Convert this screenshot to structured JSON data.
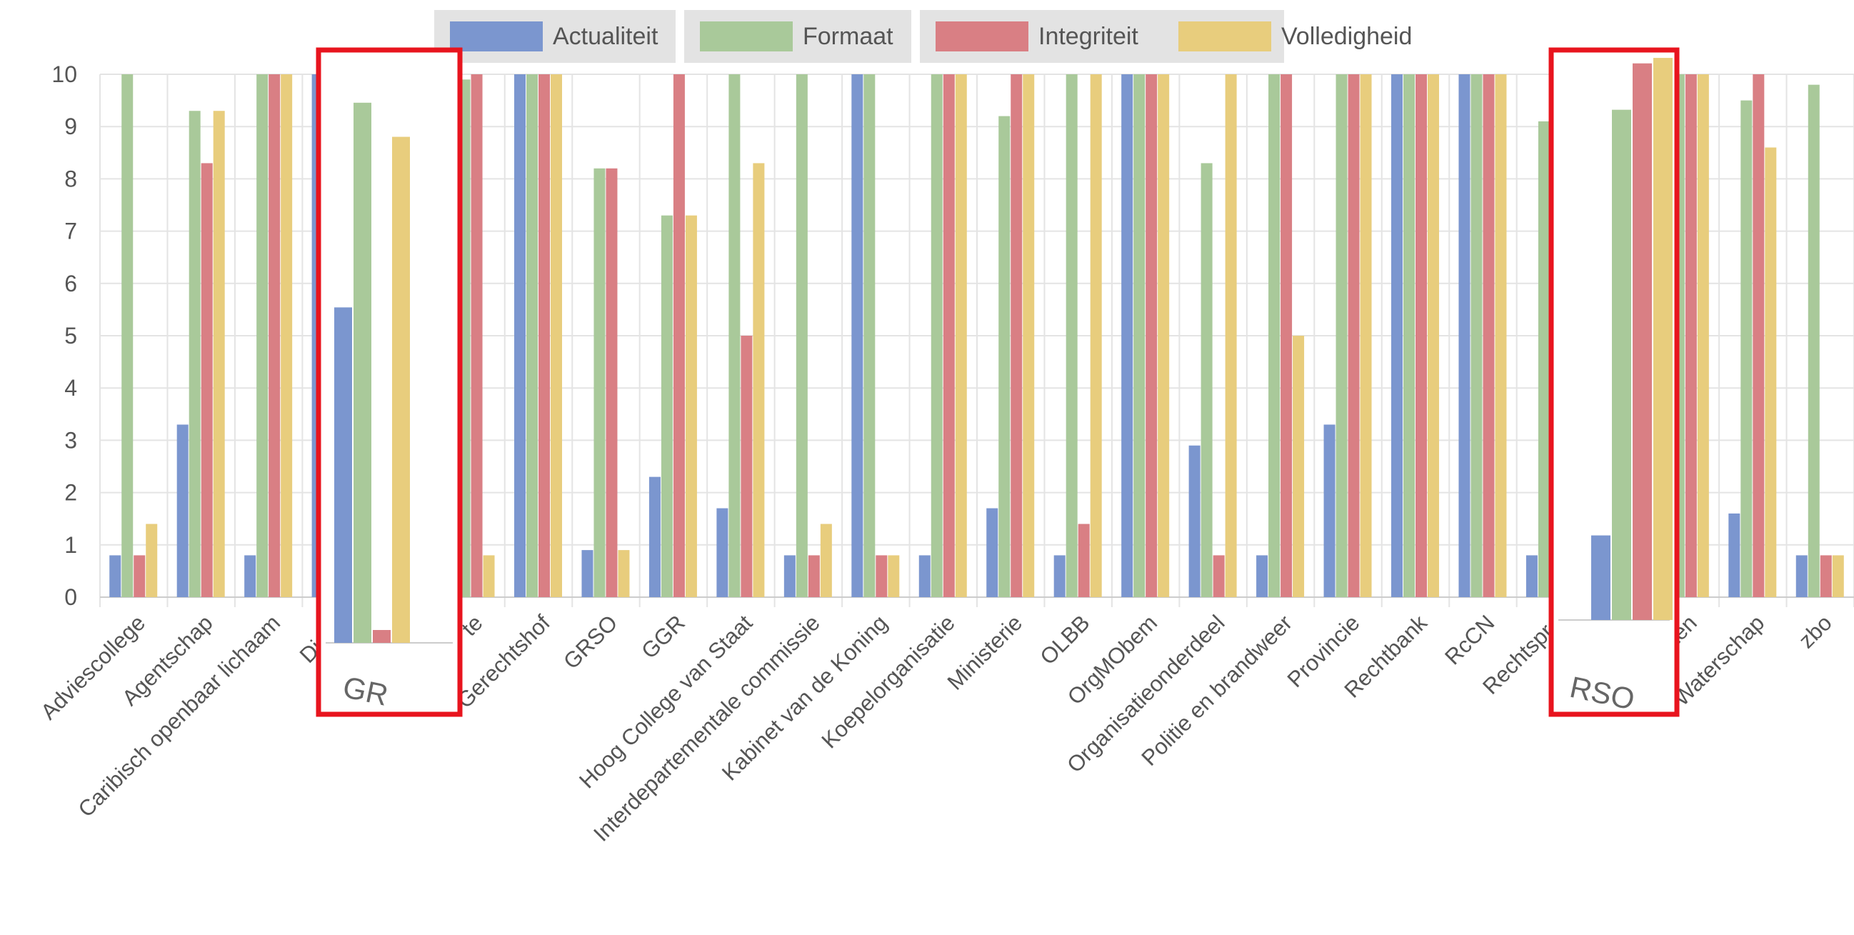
{
  "chart_data": {
    "type": "bar",
    "title": "",
    "xlabel": "",
    "ylabel": "",
    "ylim": [
      0,
      10
    ],
    "yticks": [
      "0",
      "1",
      "2",
      "3",
      "4",
      "5",
      "6",
      "7",
      "8",
      "9",
      "10"
    ],
    "legend_position": "top",
    "grid": true,
    "categories": [
      "Adviescollege",
      "Agentschap",
      "Caribisch openbaar lichaam",
      "Dienst",
      "GR",
      "Gemeente",
      "Gerechtshof",
      "GRSO",
      "GGR",
      "Hoog College van Staat",
      "Interdepartementale commissie",
      "Kabinet van de Koning",
      "Koepelorganisatie",
      "Ministerie",
      "OLBB",
      "OrgMObem",
      "Organisatieonderdeel",
      "Politie en brandweer",
      "Provincie",
      "Rechtbank",
      "RcCN",
      "Rechtspraak",
      "RSO",
      "Staten-Generaal",
      "Waterschap",
      "zbo"
    ],
    "tick_labels": [
      "Adviescollege",
      "Agentschap",
      "Caribisch openbaar lichaam",
      "Diens",
      "",
      "te",
      "Gerechtshof",
      "GRSO",
      "GGR",
      "Hoog College van Staat",
      "Interdepartementale commissie",
      "Kabinet van de Koning",
      "Koepelorganisatie",
      "Ministerie",
      "OLBB",
      "OrgMObem",
      "Organisatieonderdeel",
      "Politie en brandweer",
      "Provincie",
      "Rechtbank",
      "RcCN",
      "Rechtspra",
      "",
      "Staten",
      "Waterschap",
      "zbo"
    ],
    "series": [
      {
        "name": "Actualiteit",
        "color": "#7b96cf",
        "values": [
          0.8,
          3.3,
          0.8,
          10,
          5.9,
          0.8,
          10,
          0.9,
          2.3,
          1.7,
          0.8,
          10,
          0.8,
          1.7,
          0.8,
          10,
          2.9,
          0.8,
          3.3,
          10,
          10,
          0.8,
          1.55,
          10,
          1.6,
          0.8
        ]
      },
      {
        "name": "Formaat",
        "color": "#a9c99a",
        "values": [
          10,
          9.3,
          10,
          10,
          9.5,
          9.9,
          10,
          8.2,
          7.3,
          10,
          10,
          10,
          10,
          9.2,
          10,
          10,
          8.3,
          10,
          10,
          10,
          10,
          9.1,
          9.35,
          10,
          9.5,
          9.8
        ]
      },
      {
        "name": "Integriteit",
        "color": "#d97f84",
        "values": [
          0.8,
          8.3,
          10,
          10,
          0,
          10,
          10,
          8.2,
          10,
          5.0,
          0.8,
          0.8,
          10,
          10,
          1.4,
          10,
          0.8,
          10,
          10,
          10,
          10,
          9.1,
          10.2,
          10,
          10,
          0.8
        ]
      },
      {
        "name": "Volledigheid",
        "color": "#e8cd7d",
        "values": [
          1.4,
          9.3,
          10,
          10,
          8.9,
          0.8,
          10,
          0.9,
          7.3,
          8.3,
          1.4,
          0.8,
          10,
          10,
          10,
          10,
          10,
          5.0,
          10,
          10,
          10,
          9.1,
          10.3,
          10,
          8.6,
          0.8
        ]
      }
    ],
    "insets": [
      {
        "label": "GR",
        "category": "GR"
      },
      {
        "label": "RSO",
        "category": "RSO"
      }
    ]
  }
}
